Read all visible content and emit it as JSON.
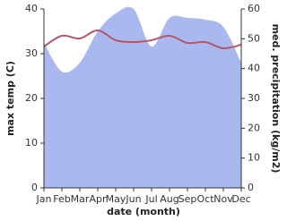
{
  "chart_data": {
    "type": "line-area",
    "x_label": "date (month)",
    "y_label": "max temp (C)",
    "y2_label": "med. precipitation (kg/m2)",
    "categories": [
      "Jan",
      "Feb",
      "Mar",
      "Apr",
      "May",
      "Jun",
      "Jul",
      "Aug",
      "Sep",
      "Oct",
      "Nov",
      "Dec"
    ],
    "series": [
      {
        "name": "max temp",
        "color": "#b5566a",
        "kind": "line",
        "values": [
          31.6,
          34,
          33.4,
          35.2,
          33,
          32.6,
          33,
          34,
          32.4,
          32.6,
          31.2,
          32
        ]
      },
      {
        "name": "med. precipitation",
        "color": "#aab8f0",
        "kind": "area",
        "axis": "y2",
        "values": [
          48.6,
          39,
          42,
          52.5,
          58.5,
          60,
          47.4,
          57,
          57,
          56.4,
          54,
          42
        ]
      }
    ],
    "ylim": [
      0,
      40
    ],
    "yticks": [
      0,
      10,
      20,
      30,
      40
    ],
    "y2lim": [
      0,
      60
    ],
    "y2ticks": [
      0,
      10,
      20,
      30,
      40,
      50,
      60
    ]
  }
}
